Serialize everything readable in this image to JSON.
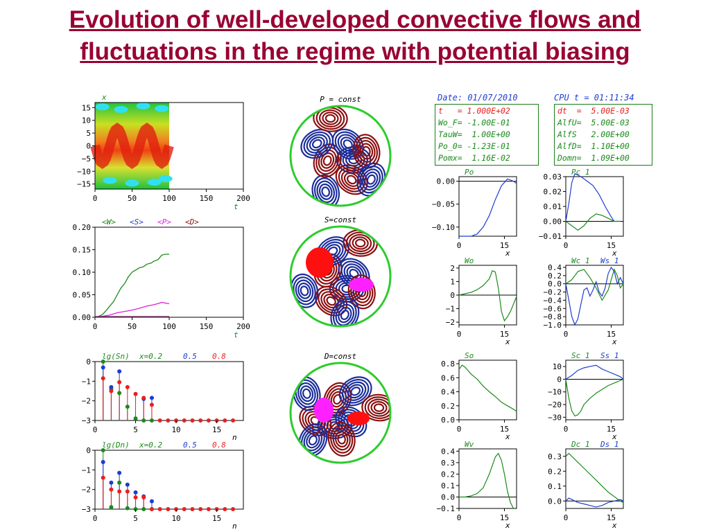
{
  "title": {
    "line1": "Evolution of well-developed convective flows and",
    "line2": "fluctuations in the regime with potential biasing"
  },
  "colors": {
    "title": "#990033",
    "blue": "#1e3cd0",
    "green": "#1a8a1a",
    "red": "#e82020",
    "magenta": "#e020e0",
    "darkred": "#8b1010"
  },
  "header": {
    "date": "Date: 01/07/2010",
    "cpu": "CPU t = 01:11:34"
  },
  "params_left": [
    {
      "text": "t   = 1.000E+02",
      "color": "red"
    },
    {
      "text": "Wo_F= -1.00E-01",
      "color": "green"
    },
    {
      "text": "TauW=  1.00E+00",
      "color": "green"
    },
    {
      "text": "Po_0= -1.23E-01",
      "color": "green"
    },
    {
      "text": "Pomx=  1.16E-02",
      "color": "green"
    }
  ],
  "params_right": [
    {
      "text": "dt  =  5.00E-03",
      "color": "red"
    },
    {
      "text": "AlfU=  5.00E-03",
      "color": "green"
    },
    {
      "text": "AlfS   2.00E+00",
      "color": "green"
    },
    {
      "text": "AlfD=  1.10E+00",
      "color": "green"
    },
    {
      "text": "Domn=  1.09E+00",
      "color": "green"
    }
  ],
  "circle_labels": {
    "p": "P = const",
    "s": "S=const",
    "d": "D=const"
  },
  "chart_data": [
    {
      "id": "contour",
      "type": "heatmap",
      "ylabel": "x",
      "xlabel": "t",
      "xticks": [
        "0",
        "50",
        "100",
        "150",
        "200"
      ],
      "xlim": [
        0,
        200
      ],
      "yticks": [
        "15",
        "10",
        "5",
        "0",
        "−5",
        "−10",
        "−15"
      ],
      "ylim": [
        -17,
        17
      ],
      "filled_to": 100
    },
    {
      "id": "energy",
      "type": "line",
      "legend": [
        {
          "text": "<W>",
          "color": "green"
        },
        {
          "text": "<S>",
          "color": "blue"
        },
        {
          "text": "<P>",
          "color": "magenta"
        },
        {
          "text": "<D>",
          "color": "darkred"
        }
      ],
      "xlabel": "t",
      "xticks": [
        "0",
        "50",
        "100",
        "150",
        "200"
      ],
      "xlim": [
        0,
        200
      ],
      "yticks": [
        "0.20",
        "0.15",
        "0.10",
        "0.05",
        "0.00"
      ],
      "ylim": [
        0,
        0.2
      ],
      "series": [
        {
          "name": "<W>",
          "color": "green",
          "x": [
            0,
            5,
            10,
            15,
            20,
            25,
            30,
            35,
            40,
            45,
            50,
            55,
            60,
            65,
            70,
            75,
            80,
            85,
            90,
            95,
            100
          ],
          "y": [
            0.0,
            0.002,
            0.006,
            0.015,
            0.025,
            0.035,
            0.05,
            0.065,
            0.075,
            0.09,
            0.1,
            0.105,
            0.11,
            0.112,
            0.118,
            0.12,
            0.125,
            0.128,
            0.138,
            0.14,
            0.14
          ]
        },
        {
          "name": "<P>",
          "color": "magenta",
          "x": [
            0,
            10,
            20,
            30,
            40,
            50,
            60,
            70,
            80,
            90,
            100
          ],
          "y": [
            0,
            0.002,
            0.005,
            0.01,
            0.013,
            0.016,
            0.02,
            0.025,
            0.028,
            0.033,
            0.03
          ]
        },
        {
          "name": "<D>",
          "color": "darkred",
          "x": [
            0,
            50,
            100
          ],
          "y": [
            0.0015,
            0.0015,
            0.0015
          ]
        },
        {
          "name": "<S>",
          "color": "blue",
          "x": [
            0,
            50,
            100
          ],
          "y": [
            0.0,
            0.0,
            0.0
          ]
        }
      ]
    },
    {
      "id": "sn",
      "type": "scatter",
      "title": "lg(Sn)",
      "header": [
        {
          "text": "x=0.2",
          "color": "green"
        },
        {
          "text": "0.5",
          "color": "blue"
        },
        {
          "text": "0.8",
          "color": "red"
        }
      ],
      "xlabel": "n",
      "xticks": [
        "0",
        "5",
        "10",
        "15"
      ],
      "xlim": [
        0,
        17
      ],
      "yticks": [
        "0",
        "−1",
        "−2",
        "−3"
      ],
      "ylim": [
        -3,
        0
      ],
      "series": [
        {
          "name": "x=0.2",
          "color": "green",
          "n": [
            1,
            2,
            3,
            4,
            5,
            6,
            7
          ],
          "v": [
            0,
            -1.4,
            -1.6,
            -2.3,
            -2.9,
            -3,
            -3
          ]
        },
        {
          "name": "0.5",
          "color": "blue",
          "n": [
            1,
            2,
            3,
            6,
            7
          ],
          "v": [
            -0.3,
            -1.3,
            -0.5,
            -1.9,
            -1.85
          ]
        },
        {
          "name": "0.8",
          "color": "red",
          "n": [
            1,
            2,
            3,
            4,
            5,
            6,
            7,
            8,
            9,
            10,
            11,
            12,
            13,
            14,
            15,
            16,
            17
          ],
          "v": [
            -0.85,
            -1.5,
            -1.05,
            -1.3,
            -1.65,
            -1.85,
            -2.2,
            -3,
            -3,
            -3,
            -3,
            -3,
            -3,
            -3,
            -3,
            -3,
            -3
          ]
        }
      ]
    },
    {
      "id": "dn",
      "type": "scatter",
      "title": "lg(Dn)",
      "header": [
        {
          "text": "x=0.2",
          "color": "green"
        },
        {
          "text": "0.5",
          "color": "blue"
        },
        {
          "text": "0.8",
          "color": "red"
        }
      ],
      "xlabel": "n",
      "xticks": [
        "0",
        "5",
        "10",
        "15"
      ],
      "xlim": [
        0,
        17
      ],
      "yticks": [
        "0",
        "−1",
        "−2",
        "−3"
      ],
      "ylim": [
        -3,
        0
      ],
      "series": [
        {
          "name": "x=0.2",
          "color": "green",
          "n": [
            1,
            2,
            3,
            4,
            5,
            6,
            7
          ],
          "v": [
            0,
            -2.9,
            -1.65,
            -2.95,
            -3,
            -3,
            -3
          ]
        },
        {
          "name": "0.5",
          "color": "blue",
          "n": [
            1,
            2,
            3,
            4,
            5,
            6,
            7
          ],
          "v": [
            -0.6,
            -1.65,
            -1.15,
            -1.75,
            -2.15,
            -2.35,
            -2.6
          ]
        },
        {
          "name": "0.8",
          "color": "red",
          "n": [
            1,
            2,
            3,
            4,
            5,
            6,
            7,
            8,
            9,
            10,
            11,
            12,
            13,
            14,
            15,
            16,
            17
          ],
          "v": [
            -1.4,
            -2.0,
            -2.1,
            -2.1,
            -2.4,
            -2.4,
            -3,
            -3,
            -3,
            -3,
            -3,
            -3,
            -3,
            -3,
            -3,
            -3,
            -3
          ]
        }
      ]
    },
    {
      "id": "po",
      "type": "line",
      "header": [
        {
          "text": "Po",
          "color": "green"
        }
      ],
      "xlabel": "x",
      "xticks": [
        "0",
        "15"
      ],
      "xlim": [
        0,
        19
      ],
      "yticks": [
        "0.00",
        "−0.05",
        "−0.10"
      ],
      "ylim": [
        -0.12,
        0.01
      ],
      "yvals": [
        0,
        -0.05,
        -0.1
      ],
      "series": [
        {
          "color": "blue",
          "x": [
            0,
            2,
            4,
            6,
            8,
            10,
            12,
            14,
            16,
            18,
            19
          ],
          "y": [
            -0.12,
            -0.12,
            -0.12,
            -0.115,
            -0.1,
            -0.075,
            -0.04,
            -0.01,
            0.005,
            0.0,
            -0.005
          ]
        }
      ]
    },
    {
      "id": "pc1",
      "type": "line",
      "header": [
        {
          "text": "Pc 1",
          "color": "green"
        }
      ],
      "xlabel": "x",
      "xticks": [
        "0",
        "15"
      ],
      "xlim": [
        0,
        19
      ],
      "yticks": [
        "0.03",
        "0.02",
        "0.01",
        "0.00",
        "−0.01"
      ],
      "ylim": [
        -0.01,
        0.03
      ],
      "yvals": [
        0.03,
        0.02,
        0.01,
        0,
        -0.01
      ],
      "series": [
        {
          "color": "blue",
          "x": [
            0,
            1,
            2,
            3,
            5,
            7,
            9,
            11,
            13,
            15,
            16,
            17,
            18
          ],
          "y": [
            0,
            0.012,
            0.026,
            0.032,
            0.03,
            0.027,
            0.024,
            0.018,
            0.01,
            0.003,
            0.0,
            0.0,
            0.0
          ]
        },
        {
          "color": "green",
          "x": [
            0,
            2,
            4,
            6,
            8,
            10,
            12,
            14,
            16,
            18
          ],
          "y": [
            0,
            -0.003,
            -0.006,
            -0.003,
            0.002,
            0.005,
            0.004,
            0.002,
            0.0,
            0.0
          ]
        }
      ]
    },
    {
      "id": "wo",
      "type": "line",
      "header": [
        {
          "text": "Wo",
          "color": "green"
        }
      ],
      "xlabel": "x",
      "xticks": [
        "0",
        "15"
      ],
      "xlim": [
        0,
        19
      ],
      "yticks": [
        "2",
        "1",
        "0",
        "−1",
        "−2"
      ],
      "ylim": [
        -2.2,
        2.2
      ],
      "yvals": [
        2,
        1,
        0,
        -1,
        -2
      ],
      "series": [
        {
          "color": "green",
          "x": [
            0,
            2,
            4,
            6,
            8,
            10,
            11,
            12,
            13,
            14,
            15,
            16,
            17,
            19
          ],
          "y": [
            0,
            0.1,
            0.2,
            0.4,
            0.7,
            1.2,
            1.8,
            1.7,
            0.5,
            -1.2,
            -1.9,
            -1.6,
            -1.2,
            -0.1
          ]
        }
      ]
    },
    {
      "id": "wc1",
      "type": "line",
      "header": [
        {
          "text": "Wc 1",
          "color": "green"
        },
        {
          "text": "Ws 1",
          "color": "blue"
        }
      ],
      "xlabel": "x",
      "xticks": [
        "0",
        "15"
      ],
      "xlim": [
        0,
        19
      ],
      "yticks": [
        "0.4",
        "0.2",
        "0.0",
        "−0.2",
        "−0.4",
        "−0.6",
        "−0.8",
        "−1.0"
      ],
      "ylim": [
        -1.0,
        0.45
      ],
      "yvals": [
        0.4,
        0.2,
        0,
        -0.2,
        -0.4,
        -0.6,
        -0.8,
        -1.0
      ],
      "series": [
        {
          "color": "blue",
          "x": [
            0,
            1,
            2,
            3,
            4,
            5,
            6,
            7,
            8,
            9,
            10,
            11,
            12,
            13,
            14,
            15,
            16,
            17,
            18,
            19
          ],
          "y": [
            0,
            -0.4,
            -0.8,
            -1.0,
            -0.85,
            -0.5,
            -0.15,
            -0.1,
            -0.3,
            -0.15,
            0.05,
            -0.2,
            -0.3,
            -0.1,
            0.25,
            0.4,
            0.3,
            0.0,
            0.15,
            0.0
          ]
        },
        {
          "color": "green",
          "x": [
            0,
            2,
            4,
            6,
            8,
            10,
            12,
            14,
            16,
            17,
            18,
            19
          ],
          "y": [
            0,
            0.1,
            0.3,
            0.35,
            0.15,
            -0.1,
            -0.4,
            -0.15,
            0.35,
            0.2,
            -0.1,
            0.0
          ]
        }
      ]
    },
    {
      "id": "so",
      "type": "line",
      "header": [
        {
          "text": "So",
          "color": "green"
        }
      ],
      "xlabel": "x",
      "xticks": [
        "0",
        "15"
      ],
      "xlim": [
        0,
        19
      ],
      "yticks": [
        "0.8",
        "0.6",
        "0.4",
        "0.2",
        "0.0"
      ],
      "ylim": [
        0,
        0.85
      ],
      "yvals": [
        0.8,
        0.6,
        0.4,
        0.2,
        0
      ],
      "series": [
        {
          "color": "green",
          "x": [
            0,
            1,
            2,
            4,
            6,
            8,
            10,
            12,
            14,
            16,
            18,
            19
          ],
          "y": [
            0.72,
            0.78,
            0.75,
            0.65,
            0.58,
            0.48,
            0.4,
            0.33,
            0.25,
            0.2,
            0.15,
            0.12
          ]
        }
      ]
    },
    {
      "id": "sc1",
      "type": "line",
      "header": [
        {
          "text": "Sc 1",
          "color": "green"
        },
        {
          "text": "Ss 1",
          "color": "blue"
        }
      ],
      "xlabel": "x",
      "xticks": [
        "0",
        "15"
      ],
      "xlim": [
        0,
        19
      ],
      "yticks": [
        "10",
        "0",
        "−10",
        "−20",
        "−30"
      ],
      "ylim": [
        -32,
        15
      ],
      "yvals": [
        10,
        0,
        -10,
        -20,
        -30
      ],
      "series": [
        {
          "color": "blue",
          "x": [
            0,
            2,
            4,
            6,
            8,
            10,
            12,
            14,
            16,
            18,
            19
          ],
          "y": [
            0,
            3,
            7,
            9,
            10,
            11,
            8,
            6,
            4,
            2,
            0
          ]
        },
        {
          "color": "green",
          "x": [
            0,
            1,
            2,
            3,
            4,
            5,
            6,
            8,
            10,
            12,
            14,
            16,
            18,
            19
          ],
          "y": [
            0,
            -15,
            -25,
            -29,
            -28,
            -25,
            -20,
            -15,
            -11,
            -8,
            -5,
            -3,
            -1,
            0
          ]
        }
      ]
    },
    {
      "id": "wv",
      "type": "line",
      "header": [
        {
          "text": "Wv",
          "color": "green"
        }
      ],
      "xlabel": "x",
      "xticks": [
        "0",
        "15"
      ],
      "xlim": [
        0,
        19
      ],
      "yticks": [
        "0.4",
        "0.3",
        "0.2",
        "0.1",
        "0.0",
        "−0.1"
      ],
      "ylim": [
        -0.1,
        0.42
      ],
      "yvals": [
        0.4,
        0.3,
        0.2,
        0.1,
        0,
        -0.1
      ],
      "series": [
        {
          "color": "green",
          "x": [
            0,
            2,
            4,
            6,
            8,
            10,
            12,
            13,
            14,
            15,
            16,
            17,
            18
          ],
          "y": [
            0,
            0,
            0.01,
            0.03,
            0.08,
            0.2,
            0.35,
            0.38,
            0.32,
            0.2,
            0.05,
            -0.05,
            -0.1
          ]
        }
      ]
    },
    {
      "id": "dc1",
      "type": "line",
      "header": [
        {
          "text": "Dc 1",
          "color": "green"
        },
        {
          "text": "Ds 1",
          "color": "blue"
        }
      ],
      "xlabel": "x",
      "xticks": [
        "0",
        "15"
      ],
      "xlim": [
        0,
        19
      ],
      "yticks": [
        "0.3",
        "0.2",
        "0.1",
        "0.0"
      ],
      "ylim": [
        -0.05,
        0.35
      ],
      "yvals": [
        0.3,
        0.2,
        0.1,
        0
      ],
      "series": [
        {
          "color": "green",
          "x": [
            0,
            1,
            2,
            4,
            6,
            8,
            10,
            12,
            14,
            16,
            18,
            19
          ],
          "y": [
            0.3,
            0.32,
            0.3,
            0.26,
            0.22,
            0.18,
            0.14,
            0.1,
            0.06,
            0.03,
            0.0,
            -0.01
          ]
        },
        {
          "color": "blue",
          "x": [
            0,
            1,
            2,
            3,
            4,
            6,
            8,
            10,
            12,
            14,
            16,
            18,
            19
          ],
          "y": [
            0,
            0.02,
            0.01,
            0,
            -0.01,
            -0.02,
            -0.03,
            -0.04,
            -0.03,
            -0.01,
            0,
            0.01,
            0
          ]
        }
      ]
    }
  ]
}
